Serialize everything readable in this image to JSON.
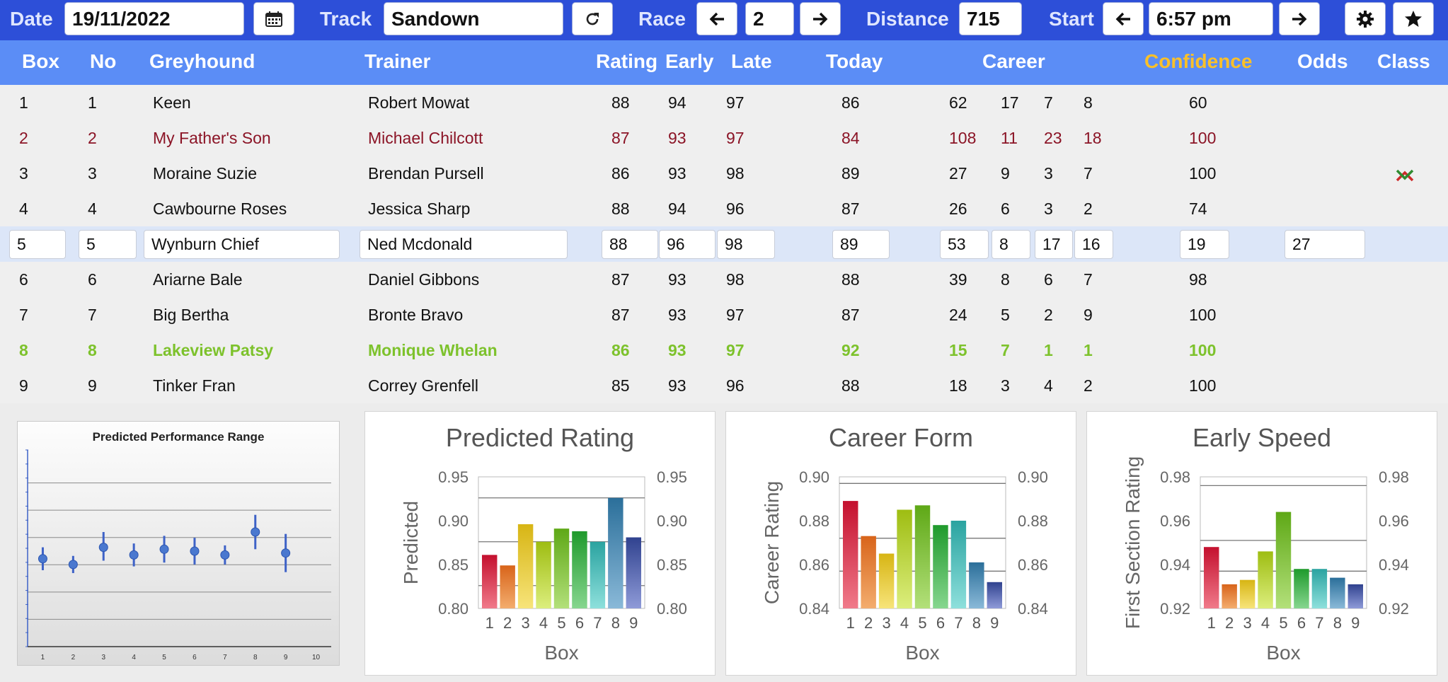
{
  "toolbar": {
    "date_label": "Date",
    "date_value": "19/11/2022",
    "calendar_icon": "calendar-icon",
    "track_label": "Track",
    "track_value": "Sandown",
    "refresh_icon": "refresh-icon",
    "race_label": "Race",
    "race_value": "2",
    "distance_label": "Distance",
    "distance_value": "715",
    "start_label": "Start",
    "start_value": "6:57 pm",
    "settings_icon": "gear-icon",
    "favourite_icon": "star-icon"
  },
  "columns": {
    "box": "Box",
    "no": "No",
    "greyhound": "Greyhound",
    "trainer": "Trainer",
    "rating": "Rating",
    "early": "Early",
    "late": "Late",
    "today": "Today",
    "career": "Career",
    "confidence": "Confidence",
    "odds": "Odds",
    "class": "Class"
  },
  "rows": [
    {
      "box": "1",
      "no": "1",
      "greyhound": "Keen",
      "trainer": "Robert Mowat",
      "rating": "88",
      "early": "94",
      "late": "97",
      "today": "86",
      "c1": "62",
      "c2": "17",
      "c3": "7",
      "c4": "8",
      "confidence": "60",
      "odds": ""
    },
    {
      "box": "2",
      "no": "2",
      "greyhound": "My Father's Son",
      "trainer": "Michael Chilcott",
      "rating": "87",
      "early": "93",
      "late": "97",
      "today": "84",
      "c1": "108",
      "c2": "11",
      "c3": "23",
      "c4": "18",
      "confidence": "100",
      "odds": ""
    },
    {
      "box": "3",
      "no": "3",
      "greyhound": "Moraine Suzie",
      "trainer": "Brendan Pursell",
      "rating": "86",
      "early": "93",
      "late": "98",
      "today": "89",
      "c1": "27",
      "c2": "9",
      "c3": "3",
      "c4": "7",
      "confidence": "100",
      "odds": ""
    },
    {
      "box": "4",
      "no": "4",
      "greyhound": "Cawbourne Roses",
      "trainer": "Jessica Sharp",
      "rating": "88",
      "early": "94",
      "late": "96",
      "today": "87",
      "c1": "26",
      "c2": "6",
      "c3": "3",
      "c4": "2",
      "confidence": "74",
      "odds": ""
    },
    {
      "box": "5",
      "no": "5",
      "greyhound": "Wynburn Chief",
      "trainer": "Ned Mcdonald",
      "rating": "88",
      "early": "96",
      "late": "98",
      "today": "89",
      "c1": "53",
      "c2": "8",
      "c3": "17",
      "c4": "16",
      "confidence": "19",
      "odds": "27"
    },
    {
      "box": "6",
      "no": "6",
      "greyhound": "Ariarne Bale",
      "trainer": "Daniel Gibbons",
      "rating": "87",
      "early": "93",
      "late": "98",
      "today": "88",
      "c1": "39",
      "c2": "8",
      "c3": "6",
      "c4": "7",
      "confidence": "98",
      "odds": ""
    },
    {
      "box": "7",
      "no": "7",
      "greyhound": "Big Bertha",
      "trainer": "Bronte Bravo",
      "rating": "87",
      "early": "93",
      "late": "97",
      "today": "87",
      "c1": "24",
      "c2": "5",
      "c3": "2",
      "c4": "9",
      "confidence": "100",
      "odds": ""
    },
    {
      "box": "8",
      "no": "8",
      "greyhound": "Lakeview Patsy",
      "trainer": "Monique Whelan",
      "rating": "86",
      "early": "93",
      "late": "97",
      "today": "92",
      "c1": "15",
      "c2": "7",
      "c3": "1",
      "c4": "1",
      "confidence": "100",
      "odds": ""
    },
    {
      "box": "9",
      "no": "9",
      "greyhound": "Tinker Fran",
      "trainer": "Correy Grenfell",
      "rating": "85",
      "early": "93",
      "late": "96",
      "today": "88",
      "c1": "18",
      "c2": "3",
      "c3": "4",
      "c4": "2",
      "confidence": "100",
      "odds": ""
    }
  ],
  "class_indicators": {
    "up_row": 2,
    "down_row": 3,
    "up_color": "#cc2a2a",
    "down_color": "#2f8a2f"
  },
  "colors": {
    "toolbar": "#2d4fd8",
    "header": "#5b8df6",
    "confidence_header": "#f9c02a",
    "highlight_red": "#8b1426",
    "highlight_green": "#7dc22c"
  },
  "chart_data": [
    {
      "type": "scatter",
      "title": "Predicted Performance Range",
      "x": [
        1,
        2,
        3,
        4,
        5,
        6,
        7,
        8,
        9
      ],
      "y": [
        0.46,
        0.43,
        0.52,
        0.48,
        0.51,
        0.5,
        0.48,
        0.6,
        0.49
      ],
      "err_low": [
        0.06,
        0.045,
        0.07,
        0.06,
        0.07,
        0.07,
        0.05,
        0.09,
        0.1
      ],
      "err_high": [
        0.06,
        0.045,
        0.08,
        0.06,
        0.07,
        0.07,
        0.05,
        0.09,
        0.1
      ],
      "xticks": [
        "1",
        "2",
        "3",
        "4",
        "5",
        "6",
        "7",
        "8",
        "9",
        "10"
      ],
      "ylim": [
        0,
        1
      ],
      "xlim": [
        0.5,
        10.5
      ]
    },
    {
      "type": "bar",
      "title": "Predicted Rating",
      "xlabel": "Box",
      "ylabel": "Predicted",
      "categories": [
        "1",
        "2",
        "3",
        "4",
        "5",
        "6",
        "7",
        "8",
        "9"
      ],
      "values": [
        0.861,
        0.849,
        0.896,
        0.876,
        0.891,
        0.888,
        0.876,
        0.926,
        0.881
      ],
      "ylim": [
        0.8,
        0.95
      ],
      "yticks": [
        "0.80",
        "0.85",
        "0.90",
        "0.95"
      ],
      "ref_lines": [
        0.826,
        0.876,
        0.926
      ]
    },
    {
      "type": "bar",
      "title": "Career Form",
      "xlabel": "Box",
      "ylabel": "Career Rating",
      "categories": [
        "1",
        "2",
        "3",
        "4",
        "5",
        "6",
        "7",
        "8",
        "9"
      ],
      "values": [
        0.889,
        0.873,
        0.865,
        0.885,
        0.887,
        0.878,
        0.88,
        0.861,
        0.852
      ],
      "ylim": [
        0.84,
        0.9
      ],
      "yticks": [
        "0.84",
        "0.86",
        "0.88",
        "0.90"
      ],
      "ref_lines": [
        0.857,
        0.872,
        0.897
      ]
    },
    {
      "type": "bar",
      "title": "Early Speed",
      "xlabel": "Box",
      "ylabel": "First Section Rating",
      "categories": [
        "1",
        "2",
        "3",
        "4",
        "5",
        "6",
        "7",
        "8",
        "9"
      ],
      "values": [
        0.948,
        0.931,
        0.933,
        0.946,
        0.964,
        0.938,
        0.938,
        0.934,
        0.931
      ],
      "ylim": [
        0.92,
        0.98
      ],
      "yticks": [
        "0.92",
        "0.94",
        "0.96",
        "0.98"
      ],
      "ref_lines": [
        0.937,
        0.951,
        0.976
      ]
    }
  ]
}
